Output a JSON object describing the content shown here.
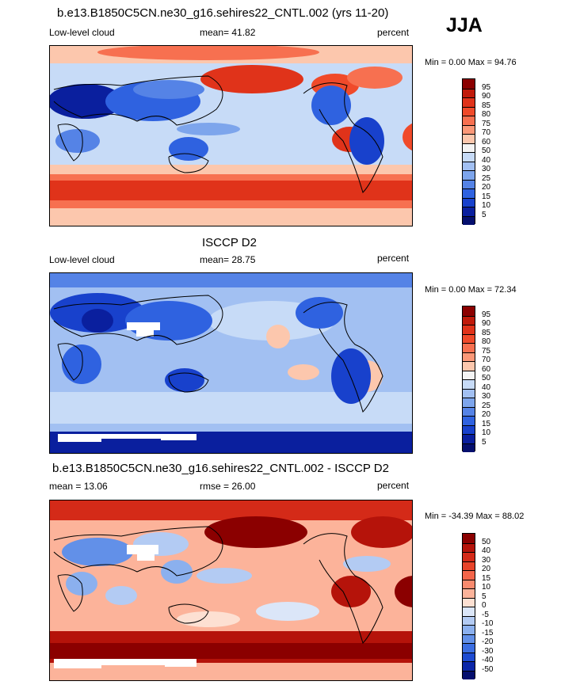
{
  "season": "JJA",
  "panels": [
    {
      "title": "b.e13.B1850C5CN.ne30_g16.sehires22_CNTL.002 (yrs 11-20)",
      "left_label": "Low-level cloud",
      "center_label": "mean=  41.82",
      "right_label": "percent",
      "minmax": "Min =   0.00 Max =  94.76",
      "colorbar": {
        "labels": [
          "95",
          "90",
          "85",
          "80",
          "75",
          "70",
          "60",
          "50",
          "40",
          "30",
          "25",
          "20",
          "15",
          "10",
          "5"
        ],
        "colors": [
          "#8b0000",
          "#c01a0a",
          "#e0331a",
          "#f04a2a",
          "#f77050",
          "#fb9878",
          "#fcc7ad",
          "#f4f4f4",
          "#c7dbf7",
          "#a2c0f2",
          "#7da5ec",
          "#5583e6",
          "#2f62e0",
          "#1841cc",
          "#0a1f9e",
          "#050f6e"
        ]
      }
    },
    {
      "title": "ISCCP D2",
      "left_label": "Low-level cloud",
      "center_label": "mean=  28.75",
      "right_label": "percent",
      "minmax": "Min =   0.00 Max =  72.34",
      "colorbar": {
        "labels": [
          "95",
          "90",
          "85",
          "80",
          "75",
          "70",
          "60",
          "50",
          "40",
          "30",
          "25",
          "20",
          "15",
          "10",
          "5"
        ],
        "colors": [
          "#8b0000",
          "#c01a0a",
          "#e0331a",
          "#f04a2a",
          "#f77050",
          "#fb9878",
          "#fcc7ad",
          "#f4f4f4",
          "#c7dbf7",
          "#a2c0f2",
          "#7da5ec",
          "#5583e6",
          "#2f62e0",
          "#1841cc",
          "#0a1f9e",
          "#050f6e"
        ]
      }
    },
    {
      "title": "b.e13.B1850C5CN.ne30_g16.sehires22_CNTL.002 - ISCCP D2",
      "left_label": "mean =  13.06",
      "center_label": "rmse =  26.00",
      "right_label": "percent",
      "minmax": "Min = -34.39 Max =  88.02",
      "colorbar": {
        "labels": [
          "50",
          "40",
          "30",
          "20",
          "15",
          "10",
          "5",
          "0",
          "-5",
          "-10",
          "-15",
          "-20",
          "-30",
          "-40",
          "-50"
        ],
        "colors": [
          "#8b0000",
          "#b5130a",
          "#d42a18",
          "#e8442a",
          "#f3654a",
          "#f98a6e",
          "#fcb39a",
          "#fde0d2",
          "#dbe6f8",
          "#b3cbf3",
          "#8bb0ee",
          "#6290e8",
          "#3b6ee2",
          "#1d4bd2",
          "#0b26a8",
          "#050f6e"
        ]
      }
    }
  ]
}
